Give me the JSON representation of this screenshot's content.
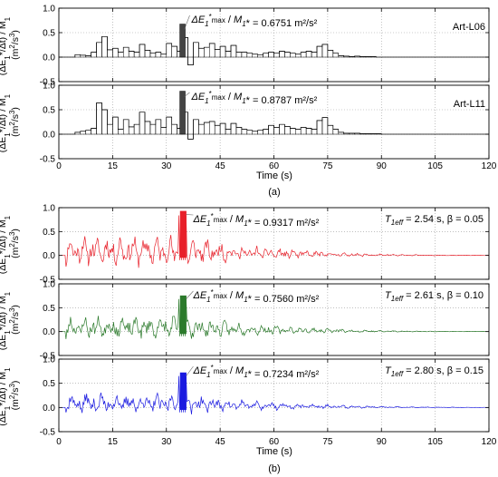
{
  "figure": {
    "caption_a": "(a)",
    "caption_b": "(b)",
    "xlabel": "Time (s)",
    "ylabel_line1": "(ΔE",
    "ylabel_sub1": "1",
    "ylabel_mid": "*/Δt) / M",
    "ylabel_sub2": "1",
    "ylabel_end": "*",
    "ylabel_line2": "(m",
    "ylabel_sup": "2",
    "ylabel_line2b": "/s",
    "ylabel_sup2": "3",
    "ylabel_line2c": ")"
  },
  "chart_data": [
    {
      "type": "bar",
      "panel": "a1",
      "series_label": "Art-L06",
      "annotation_value": "0.6751",
      "annotation_unit": "m²/s²",
      "xlim": [
        0,
        120
      ],
      "ylim": [
        -0.5,
        1.0
      ],
      "xticks": [
        0,
        15,
        30,
        45,
        60,
        75,
        90,
        105,
        120
      ],
      "yticks": [
        -0.5,
        0.0,
        0.5,
        1.0
      ],
      "bin_width_s": 1.5,
      "peak_time_s": 33.75,
      "peak_value": 0.6751,
      "values": [
        0,
        0,
        0,
        0.05,
        0.04,
        0.03,
        0.1,
        0.3,
        0.42,
        0.15,
        0.18,
        0.1,
        0.2,
        0.12,
        0.1,
        0.26,
        0.14,
        0.08,
        0.1,
        0.06,
        0.28,
        0.22,
        0.12,
        0.4,
        -0.16,
        0.3,
        0.18,
        0.2,
        0.28,
        0.16,
        0.22,
        0.12,
        0.24,
        0.1,
        0.1,
        0.08,
        0.06,
        0.05,
        0.08,
        0.1,
        0.08,
        0.12,
        0.1,
        0.08,
        0.06,
        0.1,
        0.12,
        0.1,
        0.22,
        0.26,
        0.14,
        0.08,
        0.03,
        0.02,
        0.01,
        0.02,
        0.01,
        0.01,
        0.01,
        0,
        0,
        0,
        0,
        0,
        0,
        0,
        0,
        0,
        0,
        0,
        0,
        0,
        0,
        0,
        0,
        0,
        0,
        0,
        0,
        0
      ]
    },
    {
      "type": "bar",
      "panel": "a2",
      "series_label": "Art-L11",
      "annotation_value": "0.8787",
      "annotation_unit": "m²/s²",
      "xlim": [
        0,
        120
      ],
      "ylim": [
        -0.5,
        1.0
      ],
      "xticks": [
        0,
        15,
        30,
        45,
        60,
        75,
        90,
        105,
        120
      ],
      "yticks": [
        -0.5,
        0.0,
        0.5,
        1.0
      ],
      "bin_width_s": 1.5,
      "peak_time_s": 33.75,
      "peak_value": 0.8787,
      "values": [
        0,
        0,
        0,
        0.04,
        0.06,
        0.08,
        0.12,
        0.64,
        0.5,
        0.2,
        0.35,
        0.1,
        0.3,
        0.15,
        0.2,
        0.45,
        0.26,
        0.2,
        0.3,
        0.14,
        0.35,
        0.2,
        0.12,
        0.45,
        -0.1,
        0.3,
        0.2,
        0.24,
        0.26,
        0.18,
        0.22,
        0.1,
        0.22,
        0.14,
        0.1,
        0.08,
        0.06,
        0.08,
        0.1,
        0.18,
        0.14,
        0.2,
        0.16,
        0.12,
        0.1,
        0.14,
        0.12,
        0.1,
        0.28,
        0.34,
        0.18,
        0.1,
        0.04,
        0.02,
        0.02,
        0.02,
        0.01,
        0.01,
        0.01,
        0.01,
        0,
        0,
        0,
        0,
        0,
        0,
        0,
        0,
        0,
        0,
        0,
        0,
        0,
        0,
        0,
        0,
        0,
        0,
        0,
        0
      ]
    },
    {
      "type": "line",
      "panel": "b1",
      "series_label": "T1eff = 2.54 s, β = 0.05",
      "annotation_value": "0.9317",
      "annotation_unit": "m²/s²",
      "color": "#e8202a",
      "xlim": [
        0,
        120
      ],
      "ylim": [
        -0.5,
        1.0
      ],
      "xticks": [
        0,
        15,
        30,
        45,
        60,
        75,
        90,
        105,
        120
      ],
      "yticks": [
        -0.5,
        0.0,
        0.5,
        1.0
      ],
      "period_s": 2.54,
      "damping": 0.05,
      "peak_value": 0.9317,
      "amplitude": 0.5,
      "noise_seed": 11
    },
    {
      "type": "line",
      "panel": "b2",
      "series_label": "T1eff = 2.61 s, β = 0.10",
      "annotation_value": "0.7560",
      "annotation_unit": "m²/s²",
      "color": "#2b7a2b",
      "xlim": [
        0,
        120
      ],
      "ylim": [
        -0.5,
        1.0
      ],
      "xticks": [
        0,
        15,
        30,
        45,
        60,
        75,
        90,
        105,
        120
      ],
      "yticks": [
        -0.5,
        0.0,
        0.5,
        1.0
      ],
      "period_s": 2.61,
      "damping": 0.1,
      "peak_value": 0.756,
      "amplitude": 0.4,
      "noise_seed": 23
    },
    {
      "type": "line",
      "panel": "b3",
      "series_label": "T1eff = 2.80 s, β = 0.15",
      "annotation_value": "0.7234",
      "annotation_unit": "m²/s²",
      "color": "#1a1ae0",
      "xlim": [
        0,
        120
      ],
      "ylim": [
        -0.5,
        1.0
      ],
      "xticks": [
        0,
        15,
        30,
        45,
        60,
        75,
        90,
        105,
        120
      ],
      "yticks": [
        -0.5,
        0.0,
        0.5,
        1.0
      ],
      "period_s": 2.8,
      "damping": 0.15,
      "peak_value": 0.7234,
      "amplitude": 0.35,
      "noise_seed": 37
    }
  ]
}
